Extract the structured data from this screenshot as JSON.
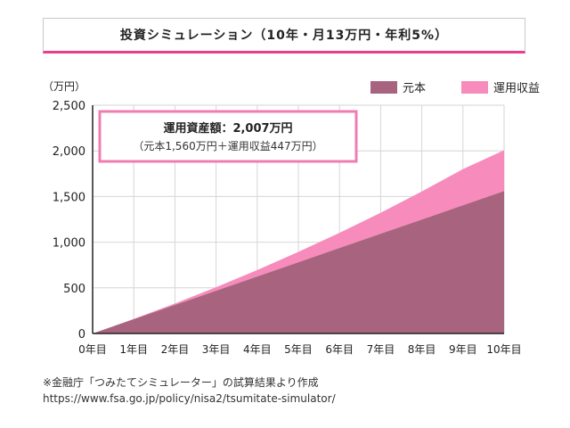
{
  "header": {
    "title": "投資シミュレーション（10年・月13万円・年利5%）"
  },
  "chart_data": {
    "type": "area",
    "stacked": true,
    "y_unit": "（万円）",
    "x": [
      "0年目",
      "1年目",
      "2年目",
      "3年目",
      "4年目",
      "5年目",
      "6年目",
      "7年目",
      "8年目",
      "9年目",
      "10年目"
    ],
    "y_ticks": [
      0,
      500,
      1000,
      1500,
      2000,
      2500
    ],
    "y_tick_labels": [
      "0",
      "500",
      "1,000",
      "1,500",
      "2,000",
      "2,500"
    ],
    "ylim": [
      0,
      2500
    ],
    "grid": true,
    "legend_position": "top-right",
    "series": [
      {
        "name": "元本",
        "color": "#a8647f",
        "values": [
          0,
          156,
          312,
          468,
          624,
          780,
          936,
          1092,
          1248,
          1404,
          1560
        ]
      },
      {
        "name": "運用収益",
        "color": "#f78bbb",
        "values": [
          0,
          4,
          16,
          38,
          70,
          113,
          166,
          230,
          307,
          396,
          447
        ]
      }
    ],
    "annotation": {
      "line1": "運用資産額：2,007万円",
      "line2": "（元本1,560万円＋運用収益447万円）",
      "border_color": "#f07cb3"
    }
  },
  "footer": {
    "note": "※金融庁「つみたてシミュレーター」の試算結果より作成",
    "url": "https://www.fsa.go.jp/policy/nisa2/tsumitate-simulator/"
  }
}
